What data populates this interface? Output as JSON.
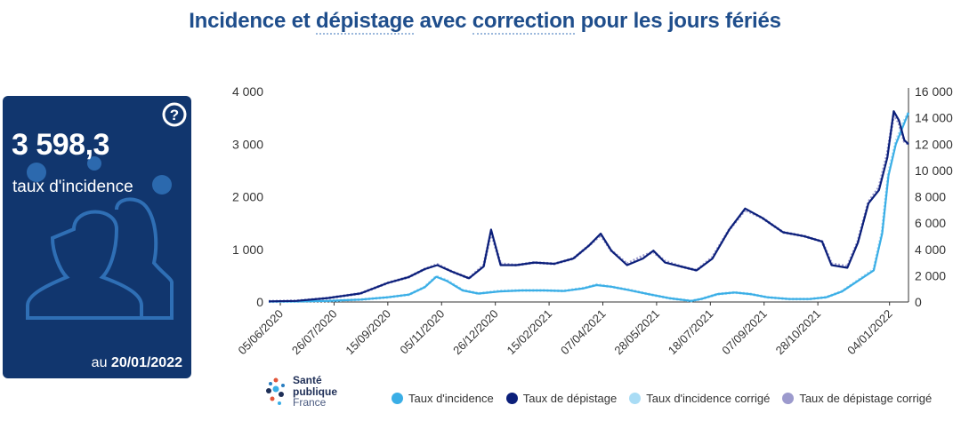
{
  "page_title": {
    "part1": "Incidence et ",
    "part2": "dépistage",
    "part3": " avec ",
    "part4": "correction",
    "part5": " pour les jours fériés"
  },
  "kpi": {
    "value": "3 598,3",
    "label": "taux d'incidence",
    "date_prefix": "au ",
    "date": "20/01/2022",
    "help_icon": "question-circle-icon",
    "bg_icons": [
      "virus-icon",
      "people-silhouette-icon"
    ]
  },
  "logo": {
    "line1": "Santé",
    "line2": "publique",
    "line3": "France"
  },
  "colors": {
    "incidence": "#3aaee6",
    "depistage": "#0b1f7a",
    "incidence_corrige": "#a9dcf5",
    "depistage_corrige": "#9c9acd",
    "kpi_bg": "#11366e",
    "title": "#1f4e8c"
  },
  "chart_data": {
    "type": "line",
    "x_ticks": [
      "05/06/2020",
      "26/07/2020",
      "15/09/2020",
      "05/11/2020",
      "26/12/2020",
      "15/02/2021",
      "07/04/2021",
      "28/05/2021",
      "18/07/2021",
      "07/09/2021",
      "28/10/2021",
      "04/01/2022"
    ],
    "x_range": [
      "2020-05-25",
      "2022-01-22"
    ],
    "y_left": {
      "ticks": [
        "0",
        "1 000",
        "2 000",
        "3 000",
        "4 000"
      ],
      "range": [
        0,
        4000
      ]
    },
    "y_right": {
      "ticks": [
        "0",
        "2 000",
        "4 000",
        "6 000",
        "8 000",
        "10 000",
        "12 000",
        "14 000",
        "16 000"
      ],
      "range": [
        0,
        16000
      ]
    },
    "grid": false,
    "legend_position": "bottom",
    "legend": [
      "Taux d'incidence",
      "Taux de dépistage",
      "Taux d'incidence corrigé",
      "Taux de dépistage corrigé"
    ],
    "series": [
      {
        "name": "Taux d'incidence",
        "axis": "left",
        "points": [
          [
            "2020-05-25",
            8
          ],
          [
            "2020-06-20",
            10
          ],
          [
            "2020-07-20",
            20
          ],
          [
            "2020-08-20",
            45
          ],
          [
            "2020-09-15",
            90
          ],
          [
            "2020-10-05",
            140
          ],
          [
            "2020-10-20",
            280
          ],
          [
            "2020-10-31",
            480
          ],
          [
            "2020-11-10",
            400
          ],
          [
            "2020-11-25",
            220
          ],
          [
            "2020-12-10",
            160
          ],
          [
            "2020-12-30",
            200
          ],
          [
            "2021-01-20",
            220
          ],
          [
            "2021-02-10",
            220
          ],
          [
            "2021-03-01",
            210
          ],
          [
            "2021-03-20",
            260
          ],
          [
            "2021-04-01",
            320
          ],
          [
            "2021-04-15",
            290
          ],
          [
            "2021-05-01",
            230
          ],
          [
            "2021-05-20",
            150
          ],
          [
            "2021-06-10",
            70
          ],
          [
            "2021-06-30",
            20
          ],
          [
            "2021-07-10",
            60
          ],
          [
            "2021-07-25",
            150
          ],
          [
            "2021-08-10",
            180
          ],
          [
            "2021-08-25",
            150
          ],
          [
            "2021-09-10",
            90
          ],
          [
            "2021-10-01",
            55
          ],
          [
            "2021-10-20",
            55
          ],
          [
            "2021-11-05",
            90
          ],
          [
            "2021-11-20",
            200
          ],
          [
            "2021-12-05",
            400
          ],
          [
            "2021-12-20",
            600
          ],
          [
            "2021-12-28",
            1300
          ],
          [
            "2022-01-03",
            2400
          ],
          [
            "2022-01-10",
            3000
          ],
          [
            "2022-01-18",
            3400
          ],
          [
            "2022-01-22",
            3598
          ]
        ]
      },
      {
        "name": "Taux de dépistage",
        "axis": "right",
        "points": [
          [
            "2020-05-25",
            50
          ],
          [
            "2020-06-20",
            80
          ],
          [
            "2020-07-20",
            300
          ],
          [
            "2020-08-20",
            650
          ],
          [
            "2020-09-15",
            1450
          ],
          [
            "2020-10-05",
            1900
          ],
          [
            "2020-10-20",
            2500
          ],
          [
            "2020-11-01",
            2800
          ],
          [
            "2020-11-15",
            2300
          ],
          [
            "2020-12-01",
            1800
          ],
          [
            "2020-12-15",
            2700
          ],
          [
            "2020-12-22",
            5500
          ],
          [
            "2020-12-31",
            2800
          ],
          [
            "2021-01-15",
            2800
          ],
          [
            "2021-02-01",
            3000
          ],
          [
            "2021-02-20",
            2900
          ],
          [
            "2021-03-10",
            3300
          ],
          [
            "2021-03-25",
            4300
          ],
          [
            "2021-04-05",
            5200
          ],
          [
            "2021-04-15",
            3900
          ],
          [
            "2021-04-30",
            2800
          ],
          [
            "2021-05-15",
            3300
          ],
          [
            "2021-05-25",
            3900
          ],
          [
            "2021-06-05",
            3000
          ],
          [
            "2021-06-20",
            2700
          ],
          [
            "2021-07-05",
            2400
          ],
          [
            "2021-07-20",
            3300
          ],
          [
            "2021-08-05",
            5500
          ],
          [
            "2021-08-20",
            7100
          ],
          [
            "2021-09-05",
            6400
          ],
          [
            "2021-09-25",
            5300
          ],
          [
            "2021-10-15",
            5000
          ],
          [
            "2021-11-01",
            4600
          ],
          [
            "2021-11-10",
            2800
          ],
          [
            "2021-11-25",
            2600
          ],
          [
            "2021-12-05",
            4500
          ],
          [
            "2021-12-15",
            7500
          ],
          [
            "2021-12-25",
            8500
          ],
          [
            "2022-01-02",
            11000
          ],
          [
            "2022-01-08",
            14500
          ],
          [
            "2022-01-13",
            13800
          ],
          [
            "2022-01-18",
            12300
          ],
          [
            "2022-01-22",
            12000
          ]
        ]
      },
      {
        "name": "Taux d'incidence corrigé",
        "axis": "left",
        "points": [
          [
            "2020-05-25",
            8
          ],
          [
            "2020-06-20",
            10
          ],
          [
            "2020-07-20",
            20
          ],
          [
            "2020-08-20",
            45
          ],
          [
            "2020-09-15",
            90
          ],
          [
            "2020-10-05",
            140
          ],
          [
            "2020-10-20",
            285
          ],
          [
            "2020-10-31",
            490
          ],
          [
            "2020-11-10",
            410
          ],
          [
            "2020-11-25",
            225
          ],
          [
            "2020-12-10",
            160
          ],
          [
            "2020-12-30",
            210
          ],
          [
            "2021-01-20",
            220
          ],
          [
            "2021-02-10",
            220
          ],
          [
            "2021-03-01",
            210
          ],
          [
            "2021-03-20",
            265
          ],
          [
            "2021-04-01",
            330
          ],
          [
            "2021-04-15",
            290
          ],
          [
            "2021-05-01",
            235
          ],
          [
            "2021-05-20",
            150
          ],
          [
            "2021-06-10",
            70
          ],
          [
            "2021-06-30",
            20
          ],
          [
            "2021-07-10",
            60
          ],
          [
            "2021-07-25",
            150
          ],
          [
            "2021-08-10",
            180
          ],
          [
            "2021-08-25",
            150
          ],
          [
            "2021-09-10",
            90
          ],
          [
            "2021-10-01",
            55
          ],
          [
            "2021-10-20",
            55
          ],
          [
            "2021-11-05",
            90
          ],
          [
            "2021-11-20",
            205
          ],
          [
            "2021-12-05",
            410
          ],
          [
            "2021-12-20",
            620
          ],
          [
            "2021-12-28",
            1350
          ],
          [
            "2022-01-03",
            2450
          ],
          [
            "2022-01-10",
            3050
          ],
          [
            "2022-01-18",
            3450
          ],
          [
            "2022-01-22",
            3600
          ]
        ]
      },
      {
        "name": "Taux de dépistage corrigé",
        "axis": "right",
        "points": [
          [
            "2020-05-25",
            50
          ],
          [
            "2020-06-20",
            80
          ],
          [
            "2020-07-20",
            300
          ],
          [
            "2020-08-20",
            650
          ],
          [
            "2020-09-15",
            1450
          ],
          [
            "2020-10-05",
            1900
          ],
          [
            "2020-10-20",
            2500
          ],
          [
            "2020-11-01",
            2850
          ],
          [
            "2020-11-15",
            2300
          ],
          [
            "2020-12-01",
            1800
          ],
          [
            "2020-12-15",
            2800
          ],
          [
            "2020-12-22",
            5300
          ],
          [
            "2020-12-31",
            2900
          ],
          [
            "2021-01-15",
            2800
          ],
          [
            "2021-02-01",
            3000
          ],
          [
            "2021-02-20",
            2900
          ],
          [
            "2021-03-10",
            3300
          ],
          [
            "2021-03-25",
            4300
          ],
          [
            "2021-04-05",
            5100
          ],
          [
            "2021-04-15",
            3900
          ],
          [
            "2021-04-30",
            2900
          ],
          [
            "2021-05-15",
            3500
          ],
          [
            "2021-05-25",
            3800
          ],
          [
            "2021-06-05",
            3100
          ],
          [
            "2021-06-20",
            2700
          ],
          [
            "2021-07-05",
            2400
          ],
          [
            "2021-07-20",
            3400
          ],
          [
            "2021-08-05",
            5500
          ],
          [
            "2021-08-20",
            7000
          ],
          [
            "2021-09-05",
            6400
          ],
          [
            "2021-09-25",
            5300
          ],
          [
            "2021-10-15",
            5000
          ],
          [
            "2021-11-01",
            4600
          ],
          [
            "2021-11-10",
            2900
          ],
          [
            "2021-11-25",
            2700
          ],
          [
            "2021-12-05",
            4600
          ],
          [
            "2021-12-15",
            7600
          ],
          [
            "2021-12-25",
            8700
          ],
          [
            "2022-01-02",
            11300
          ],
          [
            "2022-01-08",
            14300
          ],
          [
            "2022-01-13",
            13600
          ],
          [
            "2022-01-18",
            12200
          ],
          [
            "2022-01-22",
            12000
          ]
        ]
      }
    ]
  }
}
